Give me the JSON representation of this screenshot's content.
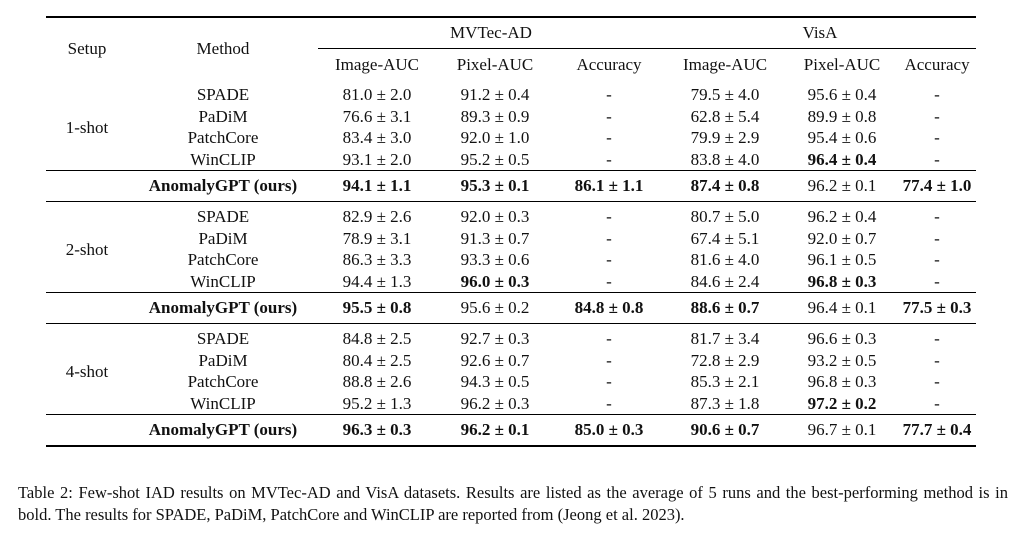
{
  "table": {
    "headers": {
      "setup": "Setup",
      "method": "Method",
      "group1": "MVTec-AD",
      "group2": "VisA",
      "cols": [
        "Image-AUC",
        "Pixel-AUC",
        "Accuracy",
        "Image-AUC",
        "Pixel-AUC",
        "Accuracy"
      ]
    },
    "blocks": [
      {
        "setup": "1-shot",
        "rows": [
          {
            "method": "SPADE",
            "cells": [
              "81.0 ± 2.0",
              "91.2 ± 0.4",
              "-",
              "79.5 ± 4.0",
              "95.6 ± 0.4",
              "-"
            ],
            "bold": [
              false,
              false,
              false,
              false,
              false,
              false
            ]
          },
          {
            "method": "PaDiM",
            "cells": [
              "76.6 ± 3.1",
              "89.3 ± 0.9",
              "-",
              "62.8 ± 5.4",
              "89.9 ± 0.8",
              "-"
            ],
            "bold": [
              false,
              false,
              false,
              false,
              false,
              false
            ]
          },
          {
            "method": "PatchCore",
            "cells": [
              "83.4 ± 3.0",
              "92.0 ± 1.0",
              "-",
              "79.9 ± 2.9",
              "95.4 ± 0.6",
              "-"
            ],
            "bold": [
              false,
              false,
              false,
              false,
              false,
              false
            ]
          },
          {
            "method": "WinCLIP",
            "cells": [
              "93.1 ± 2.0",
              "95.2 ± 0.5",
              "-",
              "83.8 ± 4.0",
              "96.4 ± 0.4",
              "-"
            ],
            "bold": [
              false,
              false,
              false,
              false,
              true,
              false
            ]
          }
        ],
        "ours": {
          "method": "AnomalyGPT (ours)",
          "cells": [
            "94.1 ± 1.1",
            "95.3 ± 0.1",
            "86.1 ± 1.1",
            "87.4 ± 0.8",
            "96.2 ± 0.1",
            "77.4 ± 1.0"
          ],
          "bold": [
            true,
            true,
            true,
            true,
            false,
            true
          ]
        }
      },
      {
        "setup": "2-shot",
        "rows": [
          {
            "method": "SPADE",
            "cells": [
              "82.9 ± 2.6",
              "92.0 ± 0.3",
              "-",
              "80.7 ± 5.0",
              "96.2 ± 0.4",
              "-"
            ],
            "bold": [
              false,
              false,
              false,
              false,
              false,
              false
            ]
          },
          {
            "method": "PaDiM",
            "cells": [
              "78.9 ± 3.1",
              "91.3 ± 0.7",
              "-",
              "67.4 ± 5.1",
              "92.0 ± 0.7",
              "-"
            ],
            "bold": [
              false,
              false,
              false,
              false,
              false,
              false
            ]
          },
          {
            "method": "PatchCore",
            "cells": [
              "86.3 ± 3.3",
              "93.3 ± 0.6",
              "-",
              "81.6 ± 4.0",
              "96.1 ± 0.5",
              "-"
            ],
            "bold": [
              false,
              false,
              false,
              false,
              false,
              false
            ]
          },
          {
            "method": "WinCLIP",
            "cells": [
              "94.4 ± 1.3",
              "96.0 ± 0.3",
              "-",
              "84.6 ± 2.4",
              "96.8 ± 0.3",
              "-"
            ],
            "bold": [
              false,
              true,
              false,
              false,
              true,
              false
            ]
          }
        ],
        "ours": {
          "method": "AnomalyGPT (ours)",
          "cells": [
            "95.5 ± 0.8",
            "95.6 ± 0.2",
            "84.8 ± 0.8",
            "88.6 ± 0.7",
            "96.4 ± 0.1",
            "77.5 ± 0.3"
          ],
          "bold": [
            true,
            false,
            true,
            true,
            false,
            true
          ]
        }
      },
      {
        "setup": "4-shot",
        "rows": [
          {
            "method": "SPADE",
            "cells": [
              "84.8 ± 2.5",
              "92.7 ± 0.3",
              "-",
              "81.7 ± 3.4",
              "96.6 ± 0.3",
              "-"
            ],
            "bold": [
              false,
              false,
              false,
              false,
              false,
              false
            ]
          },
          {
            "method": "PaDiM",
            "cells": [
              "80.4 ± 2.5",
              "92.6 ± 0.7",
              "-",
              "72.8 ± 2.9",
              "93.2 ± 0.5",
              "-"
            ],
            "bold": [
              false,
              false,
              false,
              false,
              false,
              false
            ]
          },
          {
            "method": "PatchCore",
            "cells": [
              "88.8 ± 2.6",
              "94.3 ± 0.5",
              "-",
              "85.3 ± 2.1",
              "96.8 ± 0.3",
              "-"
            ],
            "bold": [
              false,
              false,
              false,
              false,
              false,
              false
            ]
          },
          {
            "method": "WinCLIP",
            "cells": [
              "95.2 ± 1.3",
              "96.2 ± 0.3",
              "-",
              "87.3 ± 1.8",
              "97.2 ± 0.2",
              "-"
            ],
            "bold": [
              false,
              false,
              false,
              false,
              true,
              false
            ]
          }
        ],
        "ours": {
          "method": "AnomalyGPT (ours)",
          "cells": [
            "96.3 ± 0.3",
            "96.2 ± 0.1",
            "85.0 ± 0.3",
            "90.6 ± 0.7",
            "96.7 ± 0.1",
            "77.7 ± 0.4"
          ],
          "bold": [
            true,
            true,
            true,
            true,
            false,
            true
          ]
        }
      }
    ]
  },
  "caption": "Table 2: Few-shot IAD results on MVTec-AD and VisA datasets. Results are listed as the average of 5 runs and the best-performing method is in bold. The results for SPADE, PaDiM, PatchCore and WinCLIP are reported from (Jeong et al. 2023)."
}
